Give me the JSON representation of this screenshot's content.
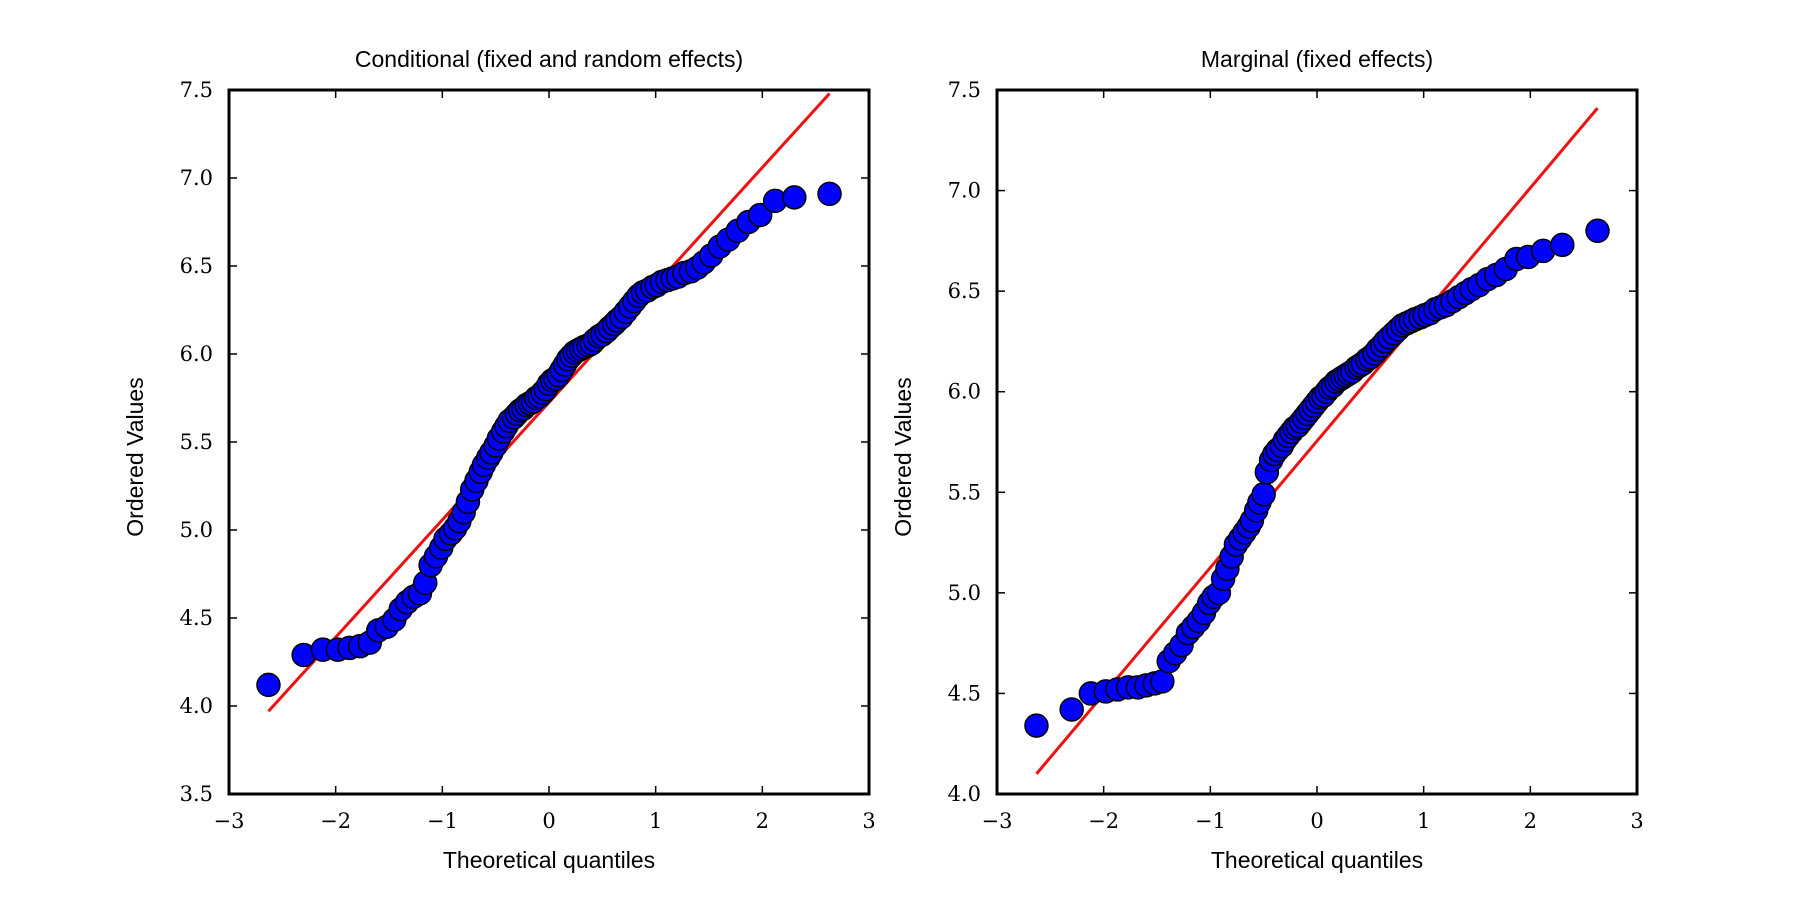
{
  "colors": {
    "marker_fill": "#0000ff",
    "marker_edge": "#000000",
    "fit_line": "#ee1111",
    "frame": "#000000",
    "background": "#ffffff"
  },
  "chart_data": [
    {
      "type": "scatter",
      "title": "Conditional (fixed and random effects)",
      "xlabel": "Theoretical quantiles",
      "ylabel": "Ordered Values",
      "xlim": [
        -3,
        3
      ],
      "ylim": [
        3.5,
        7.5
      ],
      "xticks": [
        -3,
        -2,
        -1,
        0,
        1,
        2,
        3
      ],
      "xtick_labels": [
        "−3",
        "−2",
        "−1",
        "0",
        "1",
        "2",
        "3"
      ],
      "yticks": [
        3.5,
        4.0,
        4.5,
        5.0,
        5.5,
        6.0,
        6.5,
        7.0,
        7.5
      ],
      "ytick_labels": [
        "3.5",
        "4.0",
        "4.5",
        "5.0",
        "5.5",
        "6.0",
        "6.5",
        "7.0",
        "7.5"
      ],
      "grid": false,
      "fit_line": {
        "x": [
          -2.63,
          2.63
        ],
        "y": [
          3.97,
          7.48
        ]
      },
      "points": [
        {
          "x": -2.63,
          "y": 4.12
        },
        {
          "x": -2.3,
          "y": 4.29
        },
        {
          "x": -2.12,
          "y": 4.32
        },
        {
          "x": -1.98,
          "y": 4.32
        },
        {
          "x": -1.87,
          "y": 4.33
        },
        {
          "x": -1.77,
          "y": 4.34
        },
        {
          "x": -1.68,
          "y": 4.36
        },
        {
          "x": -1.6,
          "y": 4.43
        },
        {
          "x": -1.52,
          "y": 4.45
        },
        {
          "x": -1.45,
          "y": 4.49
        },
        {
          "x": -1.39,
          "y": 4.55
        },
        {
          "x": -1.33,
          "y": 4.59
        },
        {
          "x": -1.27,
          "y": 4.62
        },
        {
          "x": -1.21,
          "y": 4.64
        },
        {
          "x": -1.16,
          "y": 4.7
        },
        {
          "x": -1.11,
          "y": 4.8
        },
        {
          "x": -1.06,
          "y": 4.85
        },
        {
          "x": -1.01,
          "y": 4.9
        },
        {
          "x": -0.97,
          "y": 4.95
        },
        {
          "x": -0.92,
          "y": 4.98
        },
        {
          "x": -0.88,
          "y": 5.01
        },
        {
          "x": -0.84,
          "y": 5.05
        },
        {
          "x": -0.8,
          "y": 5.1
        },
        {
          "x": -0.76,
          "y": 5.16
        },
        {
          "x": -0.72,
          "y": 5.23
        },
        {
          "x": -0.68,
          "y": 5.28
        },
        {
          "x": -0.64,
          "y": 5.33
        },
        {
          "x": -0.61,
          "y": 5.37
        },
        {
          "x": -0.57,
          "y": 5.41
        },
        {
          "x": -0.54,
          "y": 5.44
        },
        {
          "x": -0.5,
          "y": 5.48
        },
        {
          "x": -0.47,
          "y": 5.52
        },
        {
          "x": -0.43,
          "y": 5.56
        },
        {
          "x": -0.4,
          "y": 5.59
        },
        {
          "x": -0.37,
          "y": 5.62
        },
        {
          "x": -0.33,
          "y": 5.64
        },
        {
          "x": -0.3,
          "y": 5.66
        },
        {
          "x": -0.27,
          "y": 5.68
        },
        {
          "x": -0.24,
          "y": 5.69
        },
        {
          "x": -0.21,
          "y": 5.71
        },
        {
          "x": -0.18,
          "y": 5.72
        },
        {
          "x": -0.15,
          "y": 5.73
        },
        {
          "x": -0.12,
          "y": 5.75
        },
        {
          "x": -0.09,
          "y": 5.76
        },
        {
          "x": -0.06,
          "y": 5.78
        },
        {
          "x": -0.03,
          "y": 5.8
        },
        {
          "x": 0.0,
          "y": 5.83
        },
        {
          "x": 0.03,
          "y": 5.85
        },
        {
          "x": 0.06,
          "y": 5.86
        },
        {
          "x": 0.09,
          "y": 5.88
        },
        {
          "x": 0.12,
          "y": 5.91
        },
        {
          "x": 0.15,
          "y": 5.94
        },
        {
          "x": 0.18,
          "y": 5.97
        },
        {
          "x": 0.21,
          "y": 5.99
        },
        {
          "x": 0.24,
          "y": 6.01
        },
        {
          "x": 0.27,
          "y": 6.02
        },
        {
          "x": 0.3,
          "y": 6.03
        },
        {
          "x": 0.33,
          "y": 6.04
        },
        {
          "x": 0.37,
          "y": 6.05
        },
        {
          "x": 0.4,
          "y": 6.06
        },
        {
          "x": 0.43,
          "y": 6.08
        },
        {
          "x": 0.47,
          "y": 6.1
        },
        {
          "x": 0.5,
          "y": 6.11
        },
        {
          "x": 0.54,
          "y": 6.13
        },
        {
          "x": 0.57,
          "y": 6.15
        },
        {
          "x": 0.61,
          "y": 6.17
        },
        {
          "x": 0.64,
          "y": 6.19
        },
        {
          "x": 0.68,
          "y": 6.21
        },
        {
          "x": 0.72,
          "y": 6.24
        },
        {
          "x": 0.76,
          "y": 6.27
        },
        {
          "x": 0.8,
          "y": 6.3
        },
        {
          "x": 0.84,
          "y": 6.33
        },
        {
          "x": 0.88,
          "y": 6.35
        },
        {
          "x": 0.92,
          "y": 6.36
        },
        {
          "x": 0.97,
          "y": 6.38
        },
        {
          "x": 1.01,
          "y": 6.39
        },
        {
          "x": 1.06,
          "y": 6.41
        },
        {
          "x": 1.11,
          "y": 6.42
        },
        {
          "x": 1.16,
          "y": 6.43
        },
        {
          "x": 1.21,
          "y": 6.44
        },
        {
          "x": 1.27,
          "y": 6.46
        },
        {
          "x": 1.33,
          "y": 6.47
        },
        {
          "x": 1.39,
          "y": 6.49
        },
        {
          "x": 1.45,
          "y": 6.52
        },
        {
          "x": 1.52,
          "y": 6.56
        },
        {
          "x": 1.6,
          "y": 6.61
        },
        {
          "x": 1.68,
          "y": 6.65
        },
        {
          "x": 1.77,
          "y": 6.7
        },
        {
          "x": 1.87,
          "y": 6.75
        },
        {
          "x": 1.98,
          "y": 6.79
        },
        {
          "x": 2.12,
          "y": 6.87
        },
        {
          "x": 2.3,
          "y": 6.89
        },
        {
          "x": 2.63,
          "y": 6.91
        }
      ]
    },
    {
      "type": "scatter",
      "title": "Marginal (fixed effects)",
      "xlabel": "Theoretical quantiles",
      "ylabel": "Ordered Values",
      "xlim": [
        -3,
        3
      ],
      "ylim": [
        4.0,
        7.5
      ],
      "xticks": [
        -3,
        -2,
        -1,
        0,
        1,
        2,
        3
      ],
      "xtick_labels": [
        "−3",
        "−2",
        "−1",
        "0",
        "1",
        "2",
        "3"
      ],
      "yticks": [
        4.0,
        4.5,
        5.0,
        5.5,
        6.0,
        6.5,
        7.0,
        7.5
      ],
      "ytick_labels": [
        "4.0",
        "4.5",
        "5.0",
        "5.5",
        "6.0",
        "6.5",
        "7.0",
        "7.5"
      ],
      "grid": false,
      "fit_line": {
        "x": [
          -2.63,
          2.63
        ],
        "y": [
          4.1,
          7.41
        ]
      },
      "points": [
        {
          "x": -2.63,
          "y": 4.34
        },
        {
          "x": -2.3,
          "y": 4.42
        },
        {
          "x": -2.12,
          "y": 4.5
        },
        {
          "x": -1.98,
          "y": 4.51
        },
        {
          "x": -1.87,
          "y": 4.52
        },
        {
          "x": -1.77,
          "y": 4.53
        },
        {
          "x": -1.68,
          "y": 4.53
        },
        {
          "x": -1.6,
          "y": 4.54
        },
        {
          "x": -1.52,
          "y": 4.55
        },
        {
          "x": -1.45,
          "y": 4.56
        },
        {
          "x": -1.39,
          "y": 4.66
        },
        {
          "x": -1.33,
          "y": 4.7
        },
        {
          "x": -1.27,
          "y": 4.74
        },
        {
          "x": -1.21,
          "y": 4.8
        },
        {
          "x": -1.16,
          "y": 4.83
        },
        {
          "x": -1.11,
          "y": 4.86
        },
        {
          "x": -1.06,
          "y": 4.9
        },
        {
          "x": -1.01,
          "y": 4.95
        },
        {
          "x": -0.97,
          "y": 4.98
        },
        {
          "x": -0.92,
          "y": 5.0
        },
        {
          "x": -0.88,
          "y": 5.07
        },
        {
          "x": -0.84,
          "y": 5.12
        },
        {
          "x": -0.8,
          "y": 5.18
        },
        {
          "x": -0.76,
          "y": 5.24
        },
        {
          "x": -0.72,
          "y": 5.27
        },
        {
          "x": -0.68,
          "y": 5.3
        },
        {
          "x": -0.64,
          "y": 5.33
        },
        {
          "x": -0.61,
          "y": 5.36
        },
        {
          "x": -0.57,
          "y": 5.41
        },
        {
          "x": -0.54,
          "y": 5.45
        },
        {
          "x": -0.5,
          "y": 5.49
        },
        {
          "x": -0.47,
          "y": 5.6
        },
        {
          "x": -0.43,
          "y": 5.66
        },
        {
          "x": -0.4,
          "y": 5.69
        },
        {
          "x": -0.37,
          "y": 5.71
        },
        {
          "x": -0.33,
          "y": 5.73
        },
        {
          "x": -0.3,
          "y": 5.76
        },
        {
          "x": -0.27,
          "y": 5.78
        },
        {
          "x": -0.24,
          "y": 5.8
        },
        {
          "x": -0.21,
          "y": 5.82
        },
        {
          "x": -0.18,
          "y": 5.83
        },
        {
          "x": -0.15,
          "y": 5.85
        },
        {
          "x": -0.12,
          "y": 5.87
        },
        {
          "x": -0.09,
          "y": 5.89
        },
        {
          "x": -0.06,
          "y": 5.91
        },
        {
          "x": -0.03,
          "y": 5.93
        },
        {
          "x": 0.0,
          "y": 5.95
        },
        {
          "x": 0.03,
          "y": 5.97
        },
        {
          "x": 0.06,
          "y": 5.98
        },
        {
          "x": 0.09,
          "y": 6.0
        },
        {
          "x": 0.12,
          "y": 6.02
        },
        {
          "x": 0.15,
          "y": 6.03
        },
        {
          "x": 0.18,
          "y": 6.05
        },
        {
          "x": 0.21,
          "y": 6.06
        },
        {
          "x": 0.24,
          "y": 6.07
        },
        {
          "x": 0.27,
          "y": 6.08
        },
        {
          "x": 0.3,
          "y": 6.09
        },
        {
          "x": 0.33,
          "y": 6.1
        },
        {
          "x": 0.37,
          "y": 6.12
        },
        {
          "x": 0.4,
          "y": 6.13
        },
        {
          "x": 0.43,
          "y": 6.14
        },
        {
          "x": 0.47,
          "y": 6.16
        },
        {
          "x": 0.5,
          "y": 6.17
        },
        {
          "x": 0.54,
          "y": 6.19
        },
        {
          "x": 0.57,
          "y": 6.21
        },
        {
          "x": 0.61,
          "y": 6.23
        },
        {
          "x": 0.64,
          "y": 6.25
        },
        {
          "x": 0.68,
          "y": 6.27
        },
        {
          "x": 0.72,
          "y": 6.29
        },
        {
          "x": 0.76,
          "y": 6.31
        },
        {
          "x": 0.8,
          "y": 6.33
        },
        {
          "x": 0.84,
          "y": 6.34
        },
        {
          "x": 0.88,
          "y": 6.35
        },
        {
          "x": 0.92,
          "y": 6.36
        },
        {
          "x": 0.97,
          "y": 6.37
        },
        {
          "x": 1.01,
          "y": 6.38
        },
        {
          "x": 1.06,
          "y": 6.39
        },
        {
          "x": 1.11,
          "y": 6.41
        },
        {
          "x": 1.16,
          "y": 6.42
        },
        {
          "x": 1.21,
          "y": 6.43
        },
        {
          "x": 1.27,
          "y": 6.45
        },
        {
          "x": 1.33,
          "y": 6.47
        },
        {
          "x": 1.39,
          "y": 6.49
        },
        {
          "x": 1.45,
          "y": 6.51
        },
        {
          "x": 1.52,
          "y": 6.53
        },
        {
          "x": 1.6,
          "y": 6.56
        },
        {
          "x": 1.68,
          "y": 6.58
        },
        {
          "x": 1.77,
          "y": 6.61
        },
        {
          "x": 1.87,
          "y": 6.66
        },
        {
          "x": 1.98,
          "y": 6.67
        },
        {
          "x": 2.12,
          "y": 6.7
        },
        {
          "x": 2.3,
          "y": 6.73
        },
        {
          "x": 2.63,
          "y": 6.8
        }
      ]
    }
  ]
}
